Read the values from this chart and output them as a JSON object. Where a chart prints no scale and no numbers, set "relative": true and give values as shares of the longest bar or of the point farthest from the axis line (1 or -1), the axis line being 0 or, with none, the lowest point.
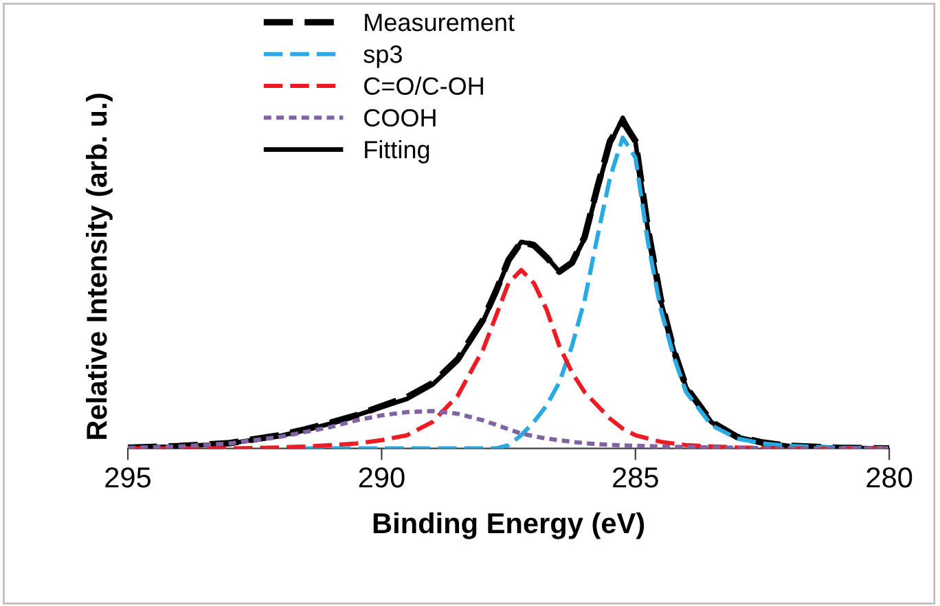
{
  "chart_data": {
    "type": "line",
    "relative": true,
    "xlabel": "Binding Energy (eV)",
    "ylabel": "Relative Intensity (arb. u.)",
    "x": [
      295,
      294,
      293,
      292,
      291.5,
      291,
      290.5,
      290,
      289.5,
      289,
      288.5,
      288,
      287.75,
      287.5,
      287.25,
      287,
      286.75,
      286.5,
      286.25,
      286,
      285.75,
      285.5,
      285.25,
      285,
      284.75,
      284.5,
      284.25,
      284,
      283.5,
      283,
      282.5,
      282,
      281,
      280
    ],
    "xlim": [
      295,
      280
    ],
    "xticks": [
      295,
      290,
      285,
      280
    ],
    "legend": "top left",
    "grid": false,
    "series": [
      {
        "name": "Measurement",
        "color": "#000000",
        "line_style": "dashed",
        "values": [
          0.002,
          0.007,
          0.016,
          0.04,
          0.058,
          0.078,
          0.1,
          0.128,
          0.155,
          0.197,
          0.27,
          0.39,
          0.475,
          0.57,
          0.625,
          0.615,
          0.578,
          0.535,
          0.562,
          0.64,
          0.79,
          0.93,
          0.99,
          0.93,
          0.66,
          0.45,
          0.3,
          0.185,
          0.08,
          0.035,
          0.018,
          0.008,
          0.002,
          0
        ]
      },
      {
        "name": "sp3",
        "color": "#29aae1",
        "line_style": "dashed",
        "values": [
          null,
          null,
          null,
          null,
          0,
          0,
          0,
          0,
          0,
          0,
          0,
          0,
          0,
          0.01,
          0.04,
          0.08,
          0.13,
          0.2,
          0.31,
          0.45,
          0.64,
          0.82,
          0.94,
          0.88,
          0.62,
          0.42,
          0.28,
          0.17,
          0.07,
          0.03,
          0.015,
          0.008,
          0.002,
          0
        ]
      },
      {
        "name": "C=O/C-OH",
        "color": "#ed1c24",
        "line_style": "dashed",
        "values": [
          0,
          0,
          0,
          0.003,
          0.006,
          0.01,
          0.015,
          0.025,
          0.04,
          0.08,
          0.16,
          0.3,
          0.4,
          0.5,
          0.54,
          0.5,
          0.42,
          0.31,
          0.23,
          0.17,
          0.13,
          0.09,
          0.06,
          0.04,
          0.03,
          0.02,
          0.015,
          0.01,
          0.006,
          0.003,
          0.002,
          0,
          0,
          0
        ]
      },
      {
        "name": "COOH",
        "color": "#8064a2",
        "line_style": "dotted",
        "values": [
          0.002,
          0.006,
          0.015,
          0.035,
          0.05,
          0.065,
          0.085,
          0.1,
          0.11,
          0.113,
          0.105,
          0.085,
          0.072,
          0.058,
          0.045,
          0.037,
          0.03,
          0.025,
          0.02,
          0.016,
          0.013,
          0.011,
          0.009,
          0.008,
          0.007,
          0.006,
          0.005,
          0.004,
          0.003,
          0.002,
          0.001,
          0,
          0,
          0
        ]
      },
      {
        "name": "Fitting",
        "color": "#000000",
        "line_style": "solid",
        "values": [
          0.002,
          0.006,
          0.015,
          0.038,
          0.056,
          0.075,
          0.1,
          0.125,
          0.15,
          0.193,
          0.265,
          0.385,
          0.472,
          0.568,
          0.625,
          0.617,
          0.58,
          0.535,
          0.56,
          0.636,
          0.783,
          0.921,
          1.0,
          0.928,
          0.657,
          0.446,
          0.3,
          0.184,
          0.079,
          0.035,
          0.018,
          0.008,
          0.002,
          0
        ]
      }
    ]
  }
}
